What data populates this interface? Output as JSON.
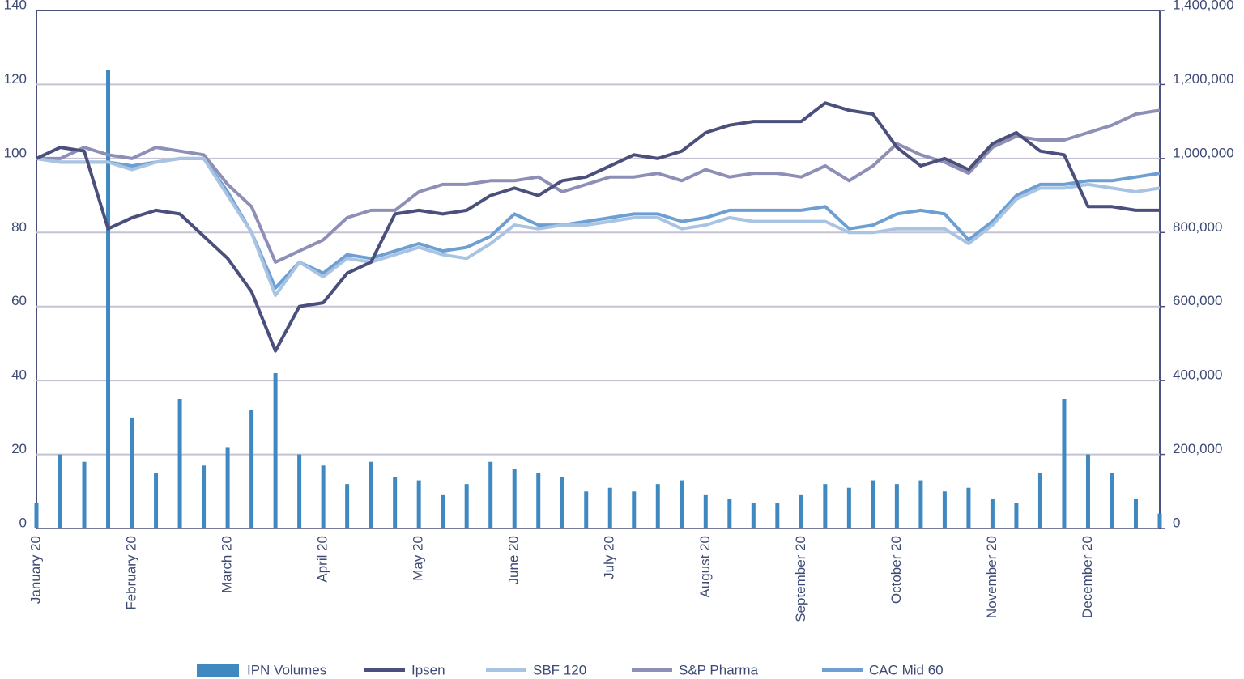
{
  "chart_data": {
    "type": "bar-line",
    "categories": [
      "January 20",
      null,
      null,
      null,
      "February 20",
      null,
      null,
      null,
      "March 20",
      null,
      null,
      null,
      "April 20",
      null,
      null,
      null,
      "May 20",
      null,
      null,
      null,
      "June 20",
      null,
      null,
      null,
      "July 20",
      null,
      null,
      null,
      "August 20",
      null,
      null,
      null,
      "September 20",
      null,
      null,
      null,
      "October 20",
      null,
      null,
      null,
      "November 20",
      null,
      null,
      null,
      "December 20",
      null,
      null,
      null
    ],
    "series": [
      {
        "name": "IPN Volumes",
        "type": "bar",
        "axis": "y2",
        "color": "#3f89c0",
        "values": [
          70000,
          200000,
          180000,
          1240000,
          300000,
          150000,
          350000,
          170000,
          220000,
          320000,
          420000,
          200000,
          170000,
          120000,
          180000,
          140000,
          130000,
          90000,
          120000,
          180000,
          160000,
          150000,
          140000,
          100000,
          110000,
          100000,
          120000,
          130000,
          90000,
          80000,
          70000,
          70000,
          90000,
          120000,
          110000,
          130000,
          120000,
          130000,
          100000,
          110000,
          80000,
          70000,
          150000,
          350000,
          200000,
          150000,
          80000,
          40000
        ]
      },
      {
        "name": "Ipsen",
        "type": "line",
        "color": "#4a4f7c",
        "values": [
          100,
          103,
          102,
          81,
          84,
          86,
          85,
          79,
          73,
          64,
          48,
          60,
          61,
          69,
          72,
          85,
          86,
          85,
          86,
          90,
          92,
          90,
          94,
          95,
          98,
          101,
          100,
          102,
          107,
          109,
          110,
          110,
          110,
          115,
          113,
          112,
          103,
          98,
          100,
          97,
          104,
          107,
          102,
          101,
          87,
          87,
          86,
          86
        ]
      },
      {
        "name": "SBF 120",
        "type": "line",
        "color": "#a9c4e2",
        "values": [
          100,
          99,
          99,
          99,
          97,
          99,
          100,
          100,
          90,
          80,
          63,
          72,
          68,
          73,
          72,
          74,
          76,
          74,
          73,
          77,
          82,
          81,
          82,
          82,
          83,
          84,
          84,
          81,
          82,
          84,
          83,
          83,
          83,
          83,
          80,
          80,
          81,
          81,
          81,
          77,
          82,
          89,
          92,
          92,
          93,
          92,
          91,
          92
        ]
      },
      {
        "name": "S&P Pharma",
        "type": "line",
        "color": "#8e8fb6",
        "values": [
          100,
          100,
          103,
          101,
          100,
          103,
          102,
          101,
          93,
          87,
          72,
          75,
          78,
          84,
          86,
          86,
          91,
          93,
          93,
          94,
          94,
          95,
          91,
          93,
          95,
          95,
          96,
          94,
          97,
          95,
          96,
          96,
          95,
          98,
          94,
          98,
          104,
          101,
          99,
          96,
          103,
          106,
          105,
          105,
          107,
          109,
          112,
          113
        ]
      },
      {
        "name": "CAC Mid 60",
        "type": "line",
        "color": "#6d9fd2",
        "values": [
          100,
          99,
          99,
          99,
          98,
          99,
          100,
          100,
          91,
          80,
          65,
          72,
          69,
          74,
          73,
          75,
          77,
          75,
          76,
          79,
          85,
          82,
          82,
          83,
          84,
          85,
          85,
          83,
          84,
          86,
          86,
          86,
          86,
          87,
          81,
          82,
          85,
          86,
          85,
          78,
          83,
          90,
          93,
          93,
          94,
          94,
          95,
          96
        ]
      }
    ],
    "ylim": [
      0,
      140
    ],
    "yticks": [
      0,
      20,
      40,
      60,
      80,
      100,
      120,
      140
    ],
    "y2lim": [
      0,
      1400000
    ],
    "y2ticks": [
      0,
      {
        "value": 200000,
        "label": "200,000"
      },
      {
        "value": 400000,
        "label": "400,000"
      },
      {
        "value": 600000,
        "label": "600,000"
      },
      {
        "value": 800000,
        "label": "800,000"
      },
      {
        "value": 1000000,
        "label": "1,000,000"
      },
      {
        "value": 1200000,
        "label": "1,200,000"
      },
      {
        "value": 1400000,
        "label": "1,400,000"
      }
    ],
    "grid": true
  }
}
